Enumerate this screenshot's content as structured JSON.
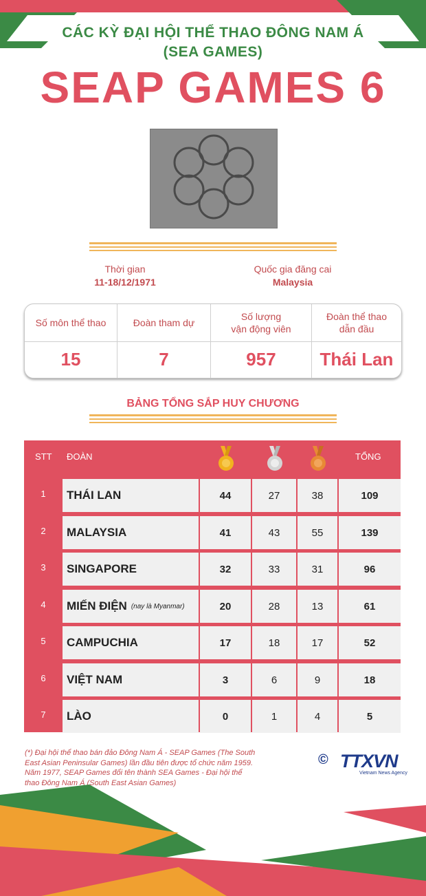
{
  "header": {
    "supertitle_line1": "CÁC KỲ ĐẠI HỘI THỂ THAO ĐÔNG NAM Á",
    "supertitle_line2": "(SEA GAMES)",
    "title": "SEAP GAMES 6"
  },
  "event_info": {
    "time_label": "Thời gian",
    "time_value": "11-18/12/1971",
    "host_label": "Quốc gia đăng cai",
    "host_value": "Malaysia"
  },
  "stats": {
    "sports_label": "Số môn thể thao",
    "sports_value": "15",
    "delegations_label": "Đoàn tham dự",
    "delegations_value": "7",
    "athletes_label_line1": "Số lượng",
    "athletes_label_line2": "vận động viên",
    "athletes_value": "957",
    "leader_label_line1": "Đoàn thể thao",
    "leader_label_line2": "dẫn đầu",
    "leader_value": "Thái Lan"
  },
  "medal_table": {
    "title": "BẢNG TỔNG SẮP HUY CHƯƠNG",
    "headers": {
      "stt": "STT",
      "team": "ĐOÀN",
      "total": "TỔNG"
    },
    "rows": [
      {
        "stt": "1",
        "team": "THÁI LAN",
        "note": "",
        "gold": "44",
        "silver": "27",
        "bronze": "38",
        "total": "109"
      },
      {
        "stt": "2",
        "team": "MALAYSIA",
        "note": "",
        "gold": "41",
        "silver": "43",
        "bronze": "55",
        "total": "139"
      },
      {
        "stt": "3",
        "team": "SINGAPORE",
        "note": "",
        "gold": "32",
        "silver": "33",
        "bronze": "31",
        "total": "96"
      },
      {
        "stt": "4",
        "team": "MIẾN ĐIỆN",
        "note": "(nay là Myanmar)",
        "gold": "20",
        "silver": "28",
        "bronze": "13",
        "total": "61"
      },
      {
        "stt": "5",
        "team": "CAMPUCHIA",
        "note": "",
        "gold": "17",
        "silver": "18",
        "bronze": "17",
        "total": "52"
      },
      {
        "stt": "6",
        "team": "VIỆT NAM",
        "note": "",
        "gold": "3",
        "silver": "6",
        "bronze": "9",
        "total": "18"
      },
      {
        "stt": "7",
        "team": "LÀO",
        "note": "",
        "gold": "0",
        "silver": "1",
        "bronze": "4",
        "total": "5"
      }
    ]
  },
  "footnote": {
    "line1": "(*) Đại hội thể thao bán đảo Đông Nam Á - SEAP Games (The South",
    "line2": "East Asian Peninsular Games) lần đầu tiên được tổ chức năm 1959.",
    "line3": "Năm 1977, SEAP Games đổi tên thành SEA Games - Đại hội thể",
    "line4": "thao Đông Nam Á (South East Asian Games)"
  },
  "logo": {
    "copyright": "©",
    "name": "TTXVN",
    "subtitle": "Vietnam News Agency"
  },
  "colors": {
    "red": "#e05060",
    "green": "#3b8a45",
    "orange": "#f0b55a",
    "gold": "#f2b21f",
    "silver": "#c8c8c8",
    "bronze": "#e88a35",
    "navy": "#1e3a8a"
  }
}
